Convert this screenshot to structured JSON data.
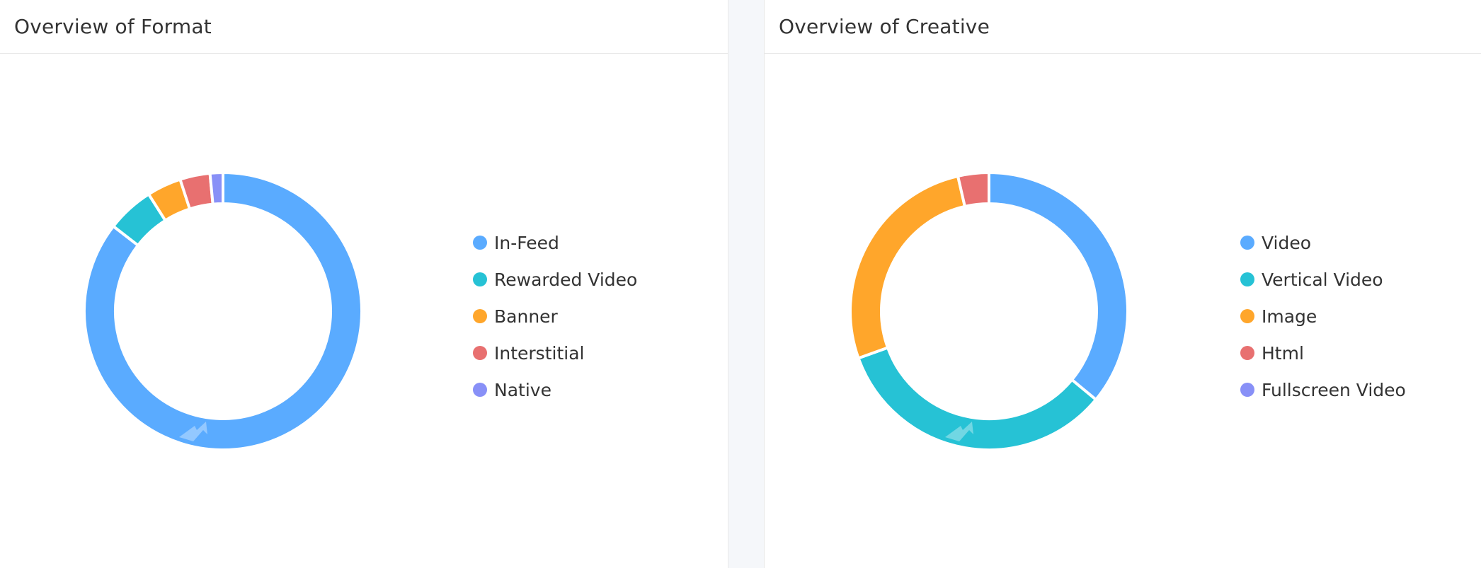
{
  "colors": {
    "blue": "#5aabff",
    "teal": "#26c2d5",
    "orange": "#ffa62b",
    "red": "#e87070",
    "purple": "#8890f7"
  },
  "format_panel": {
    "title": "Overview of Format"
  },
  "creative_panel": {
    "title": "Overview of Creative"
  },
  "chart_data": [
    {
      "type": "pie",
      "style": "donut",
      "title": "Overview of Format",
      "legend_position": "right",
      "categories": [
        "In-Feed",
        "Rewarded Video",
        "Banner",
        "Interstitial",
        "Native"
      ],
      "values": [
        85.5,
        5.5,
        4.0,
        3.5,
        1.5
      ],
      "colors": [
        "#5aabff",
        "#26c2d5",
        "#ffa62b",
        "#e87070",
        "#8890f7"
      ]
    },
    {
      "type": "pie",
      "style": "donut",
      "title": "Overview of Creative",
      "legend_position": "right",
      "categories": [
        "Video",
        "Vertical Video",
        "Image",
        "Html",
        "Fullscreen Video"
      ],
      "values": [
        36.0,
        33.5,
        26.9,
        3.6,
        0
      ],
      "colors": [
        "#5aabff",
        "#26c2d5",
        "#ffa62b",
        "#e87070",
        "#8890f7"
      ]
    }
  ]
}
